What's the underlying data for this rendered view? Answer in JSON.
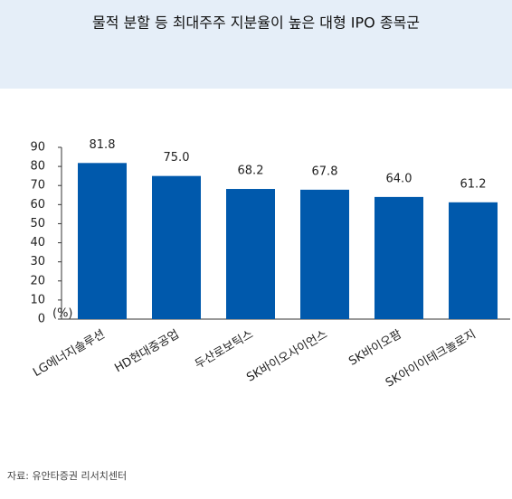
{
  "chart_data": {
    "type": "bar",
    "title": "물적 분할 등 최대주주 지분율이 높은 대형 IPO 종목군",
    "y_label": "(%)",
    "categories": [
      "LG에너지솔루션",
      "HD현대중공업",
      "두산로보틱스",
      "SK바이오사이언스",
      "SK바이오팜",
      "SK아이이테크놀로지"
    ],
    "values": [
      81.8,
      75.0,
      68.2,
      67.8,
      64.0,
      61.2
    ],
    "value_labels": [
      "81.8",
      "75.0",
      "68.2",
      "67.8",
      "64.0",
      "61.2"
    ],
    "color": "#0059ac",
    "ylim": [
      0,
      90
    ],
    "yticks": [
      0,
      10,
      20,
      30,
      40,
      50,
      60,
      70,
      80,
      90
    ],
    "source": "자료: 유안타증권 리서치센터"
  }
}
